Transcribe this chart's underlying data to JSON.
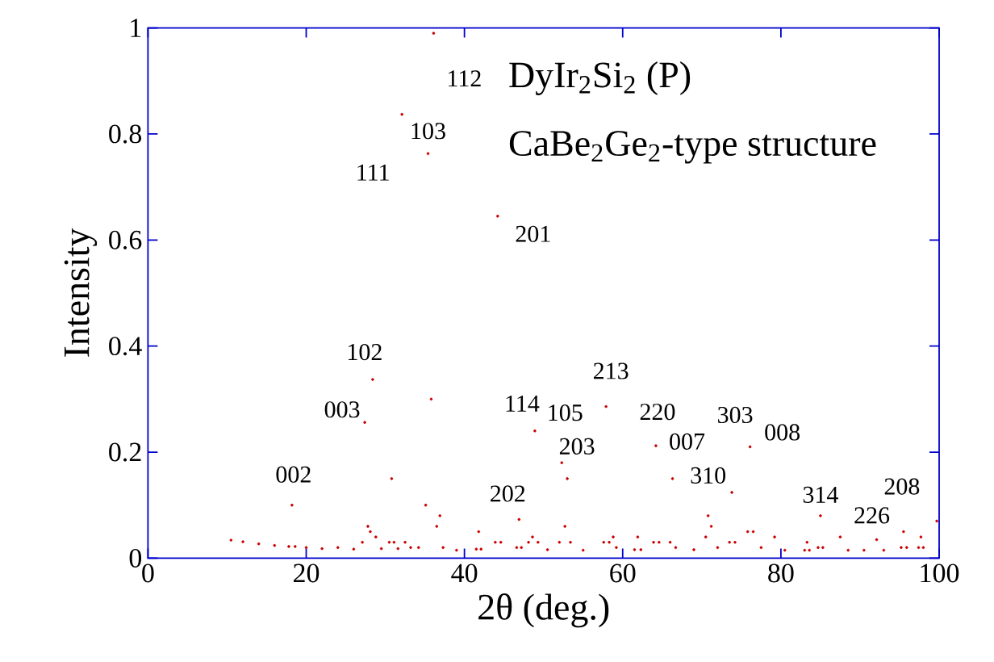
{
  "chart_data": {
    "type": "scatter",
    "title": "DyIr$_{2}$Si$_{2}$ (P)",
    "subtitle": "CaBe$_{2}$Ge$_{2}$-type structure",
    "xlabel": "2θ (deg.)",
    "ylabel": "Intensity",
    "xlim": [
      0,
      100
    ],
    "ylim": [
      0,
      1
    ],
    "xticks": [
      0,
      20,
      40,
      60,
      80,
      100
    ],
    "yticks": [
      0,
      0.2,
      0.4,
      0.6,
      0.8,
      1
    ],
    "marker": "circle",
    "color": "#cc0000",
    "x": [
      10.5,
      12,
      14,
      16,
      17.8,
      18.2,
      18.6,
      20,
      22,
      24,
      26,
      27.1,
      27.4,
      27.8,
      28.1,
      28.4,
      28.8,
      29.5,
      30.5,
      30.8,
      31.1,
      31.6,
      32.1,
      32.5,
      33.2,
      34.2,
      35.1,
      35.4,
      35.8,
      36.1,
      36.5,
      36.9,
      37.3,
      39,
      41.5,
      41.8,
      42.1,
      43.9,
      44.2,
      44.6,
      46.6,
      46.9,
      47.2,
      48.1,
      48.6,
      48.9,
      49.3,
      50.5,
      52,
      52.3,
      52.7,
      53,
      53.4,
      55,
      57.6,
      57.9,
      58.3,
      58.8,
      59.2,
      61.5,
      61.9,
      62.3,
      63.9,
      64.2,
      64.6,
      66,
      66.3,
      66.7,
      69,
      70.5,
      70.8,
      71.2,
      72,
      73.5,
      73.8,
      74.2,
      75.8,
      76.1,
      76.5,
      77.5,
      79.2,
      80.5,
      83,
      83.3,
      83.6,
      84.7,
      85,
      85.3,
      87.5,
      88.5,
      90.5,
      92.1,
      93,
      95.2,
      95.5,
      95.9,
      97.4,
      97.7,
      98,
      99.7
    ],
    "values": [
      0.034,
      0.031,
      0.027,
      0.024,
      0.022,
      0.1,
      0.022,
      0.02,
      0.018,
      0.02,
      0.017,
      0.03,
      0.256,
      0.06,
      0.05,
      0.337,
      0.04,
      0.018,
      0.03,
      0.15,
      0.03,
      0.018,
      0.837,
      0.03,
      0.02,
      0.02,
      0.1,
      0.763,
      0.3,
      0.99,
      0.06,
      0.08,
      0.02,
      0.015,
      0.017,
      0.05,
      0.017,
      0.03,
      0.645,
      0.03,
      0.02,
      0.073,
      0.02,
      0.03,
      0.04,
      0.24,
      0.03,
      0.016,
      0.03,
      0.18,
      0.06,
      0.15,
      0.03,
      0.015,
      0.03,
      0.286,
      0.03,
      0.04,
      0.02,
      0.016,
      0.04,
      0.016,
      0.03,
      0.212,
      0.03,
      0.03,
      0.15,
      0.02,
      0.016,
      0.04,
      0.08,
      0.06,
      0.02,
      0.03,
      0.124,
      0.03,
      0.05,
      0.21,
      0.05,
      0.02,
      0.04,
      0.015,
      0.015,
      0.03,
      0.015,
      0.02,
      0.08,
      0.02,
      0.04,
      0.015,
      0.015,
      0.035,
      0.015,
      0.02,
      0.05,
      0.02,
      0.02,
      0.04,
      0.02,
      0.07
    ],
    "annotations": [
      {
        "text": "002",
        "x": 18.2,
        "y": 0.1
      },
      {
        "text": "003",
        "x": 27.4,
        "y": 0.256
      },
      {
        "text": "102",
        "x": 28.4,
        "y": 0.337
      },
      {
        "text": "111",
        "x": 32.1,
        "y": 0.837
      },
      {
        "text": "103",
        "x": 35.4,
        "y": 0.763
      },
      {
        "text": "112",
        "x": 36.1,
        "y": 0.99
      },
      {
        "text": "201",
        "x": 44.2,
        "y": 0.645
      },
      {
        "text": "202",
        "x": 46.9,
        "y": 0.073
      },
      {
        "text": "114",
        "x": 48.9,
        "y": 0.24
      },
      {
        "text": "105",
        "x": 52.3,
        "y": 0.18
      },
      {
        "text": "203",
        "x": 53,
        "y": 0.15
      },
      {
        "text": "213",
        "x": 57.9,
        "y": 0.286
      },
      {
        "text": "220",
        "x": 64.2,
        "y": 0.212
      },
      {
        "text": "007",
        "x": 66.3,
        "y": 0.15
      },
      {
        "text": "310",
        "x": 70.8,
        "y": 0.08
      },
      {
        "text": "303",
        "x": 73.8,
        "y": 0.124
      },
      {
        "text": "008",
        "x": 76.1,
        "y": 0.21
      },
      {
        "text": "314",
        "x": 85,
        "y": 0.08
      },
      {
        "text": "226",
        "x": 92.1,
        "y": 0.035
      },
      {
        "text": "208",
        "x": 95.5,
        "y": 0.05
      }
    ]
  }
}
